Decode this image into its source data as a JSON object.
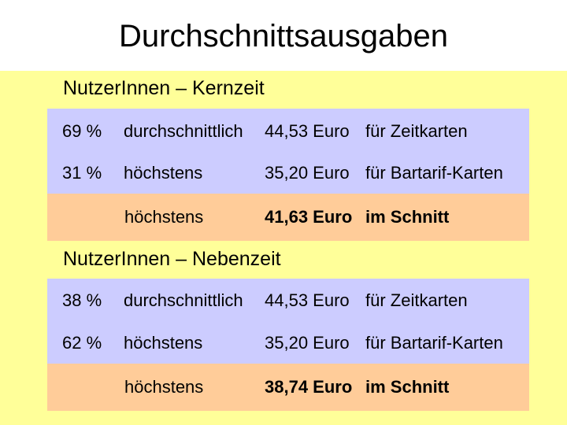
{
  "title": "Durchschnittsausgaben",
  "sections": [
    {
      "heading": "NutzerInnen – Kernzeit",
      "rows": [
        {
          "pct": "69 %",
          "desc": "durchschnittlich",
          "amount": "44,53 Euro",
          "use": "für Zeitkarten"
        },
        {
          "pct": "31 %",
          "desc": "höchstens",
          "amount": "35,20 Euro",
          "use": "für Bartarif-Karten"
        }
      ],
      "summary": {
        "desc": "höchstens",
        "amount": "41,63 Euro",
        "use": "im Schnitt"
      }
    },
    {
      "heading": "NutzerInnen – Nebenzeit",
      "rows": [
        {
          "pct": "38 %",
          "desc": "durchschnittlich",
          "amount": "44,53 Euro",
          "use": "für Zeitkarten"
        },
        {
          "pct": "62 %",
          "desc": "höchstens",
          "amount": "35,20 Euro",
          "use": "für Bartarif-Karten"
        }
      ],
      "summary": {
        "desc": "höchstens",
        "amount": "38,74 Euro",
        "use": "im Schnitt"
      }
    }
  ],
  "colors": {
    "background": "#ffff99",
    "rows_band": "#ccccff",
    "summary_band": "#ffcc99"
  }
}
